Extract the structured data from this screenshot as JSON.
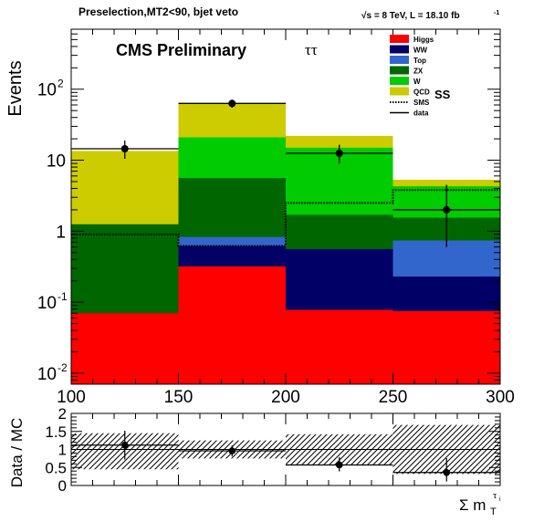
{
  "header": {
    "selection": "Preselection,MT2<90, bjet veto",
    "lumi": "√s = 8 TeV, L = 18.10 fb",
    "lumi_exp": "-1"
  },
  "labels": {
    "cms": "CMS Preliminary",
    "channel": "ττ",
    "ss": "SS",
    "ylabel_main": "Events",
    "ylabel_ratio": "Data / MC",
    "xlabel_main": "Σ m",
    "xlabel_sub": "T",
    "xlabel_sup": "τ",
    "xlabel_sup_sub": "i"
  },
  "chart_data": {
    "type": "bar",
    "stacked": true,
    "yscale": "log",
    "xlim": [
      100,
      300
    ],
    "ylim": [
      0.007,
      700
    ],
    "bin_edges": [
      100,
      150,
      200,
      250,
      300
    ],
    "x_ticks": [
      "100",
      "150",
      "200",
      "250",
      "300"
    ],
    "y_ticks": [
      {
        "v": 0.01,
        "b": "10",
        "e": "-2"
      },
      {
        "v": 0.1,
        "b": "10",
        "e": "-1"
      },
      {
        "v": 1,
        "b": "1",
        "e": ""
      },
      {
        "v": 10,
        "b": "10",
        "e": ""
      },
      {
        "v": 100,
        "b": "10",
        "e": "2"
      }
    ],
    "stack_totals": [
      {
        "name": "Higgs",
        "color": "#ff0000",
        "values": [
          0.07,
          0.32,
          0.078,
          0.075
        ]
      },
      {
        "name": "WW",
        "color": "#000066",
        "values": [
          0.07,
          0.62,
          0.56,
          0.23
        ]
      },
      {
        "name": "Top",
        "color": "#3366cc",
        "values": [
          0.07,
          0.83,
          0.56,
          0.74
        ]
      },
      {
        "name": "ZX",
        "color": "#006600",
        "values": [
          1.25,
          5.6,
          1.7,
          1.55
        ]
      },
      {
        "name": "W",
        "color": "#00cc00",
        "values": [
          1.25,
          21,
          15,
          4.3
        ]
      },
      {
        "name": "QCD",
        "color": "#cccc00",
        "values": [
          13.5,
          65,
          22,
          5.3
        ]
      }
    ],
    "sms": [
      0.9,
      0.62,
      2.5,
      3.8
    ],
    "data": {
      "x": [
        125,
        175,
        225,
        275
      ],
      "y": [
        14.5,
        63,
        12.5,
        2
      ],
      "err_lo": [
        4,
        8,
        3.5,
        1.4
      ],
      "err_hi": [
        4.5,
        8.5,
        4,
        2.5
      ]
    },
    "legend": [
      {
        "label": "Higgs",
        "color": "#ff0000",
        "kind": "box"
      },
      {
        "label": "WW",
        "color": "#000066",
        "kind": "box"
      },
      {
        "label": "Top",
        "color": "#3366cc",
        "kind": "box"
      },
      {
        "label": "ZX",
        "color": "#006600",
        "kind": "box"
      },
      {
        "label": "W",
        "color": "#00cc00",
        "kind": "box"
      },
      {
        "label": "QCD",
        "color": "#cccc00",
        "kind": "box"
      },
      {
        "label": "SMS",
        "color": "#000000",
        "kind": "dotted"
      },
      {
        "label": "data",
        "color": "#000000",
        "kind": "line"
      }
    ],
    "ratio": {
      "ylim": [
        0,
        2
      ],
      "y_ticks": [
        "0",
        "0.5",
        "1",
        "1.5",
        "2"
      ],
      "values": [
        1.12,
        0.96,
        0.57,
        0.36
      ],
      "err_lo": [
        0.4,
        0.15,
        0.18,
        0.25
      ],
      "err_hi": [
        0.4,
        0.15,
        0.22,
        0.4
      ],
      "band_lo": [
        0.45,
        0.75,
        0.58,
        0.32
      ],
      "band_hi": [
        1.45,
        1.25,
        1.42,
        1.68
      ],
      "ref_line": 1
    }
  }
}
